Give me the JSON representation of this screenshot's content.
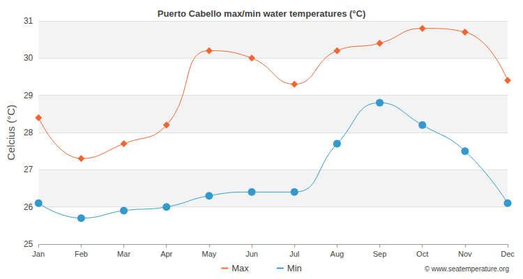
{
  "chart_data": {
    "type": "line",
    "title": "Puerto Cabello max/min water temperatures (°C)",
    "y_label": "Celcius (°C)",
    "categories": [
      "Jan",
      "Feb",
      "Mar",
      "Apr",
      "May",
      "Jun",
      "Jul",
      "Aug",
      "Sep",
      "Oct",
      "Nov",
      "Dec"
    ],
    "series": [
      {
        "name": "Max",
        "color": "#f26430",
        "marker": "diamond",
        "line_style": "solid",
        "values": [
          28.4,
          27.3,
          27.7,
          28.2,
          30.2,
          30.0,
          29.3,
          30.2,
          30.4,
          30.8,
          30.7,
          29.4
        ]
      },
      {
        "name": "Min",
        "color": "#3399cc",
        "marker": "circle",
        "line_style": "solid",
        "values": [
          26.1,
          25.7,
          25.9,
          26.0,
          26.3,
          26.4,
          26.4,
          27.7,
          28.8,
          28.2,
          27.5,
          26.1
        ]
      }
    ],
    "ylim": [
      25,
      31
    ],
    "yticks": [
      25,
      26,
      27,
      28,
      29,
      30,
      31
    ],
    "grid": true,
    "legend": "bottom",
    "annotations": [
      "© www.seatemperature.org"
    ]
  }
}
